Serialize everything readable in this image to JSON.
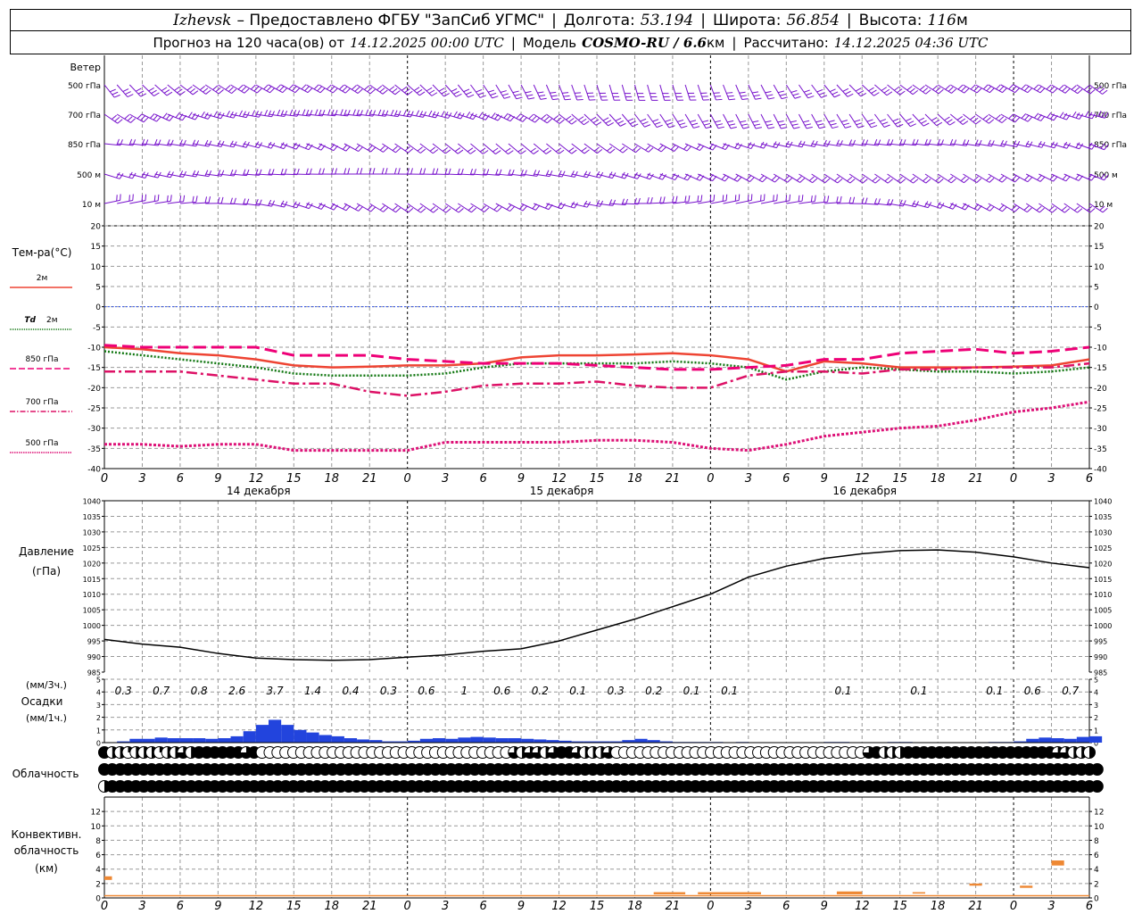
{
  "header": {
    "station": "Izhevsk",
    "provider": "– Предоставлено ФГБУ \"ЗапСиб УГМС\"",
    "lon_label": "Долгота:",
    "lon_value": "53.194",
    "lat_label": "Широта:",
    "lat_value": "56.854",
    "alt_label": "Высота:",
    "alt_value": "116",
    "alt_unit": "м",
    "forecast_label": "Прогноз на 120 часа(ов) от",
    "forecast_start": "14.12.2025 00:00 UTC",
    "model_label": "Модель",
    "model_name": "COSMO-RU / 6.6",
    "model_unit": "км",
    "calc_label": "Рассчитано:",
    "calc_time": "14.12.2025 04:36 UTC"
  },
  "colors": {
    "t2m": "#ee4433",
    "td2m": "#117711",
    "t850": "#ee0077",
    "t700": "#dd1166",
    "t500": "#dd1177",
    "wind": "#7711cc",
    "precip": "#2244dd",
    "conv": "#ee8833",
    "zero_line": "#3355ee",
    "grid": "#999999"
  },
  "time_axis": {
    "hour_ticks": [
      "0",
      "3",
      "6",
      "9",
      "12",
      "15",
      "18",
      "21",
      "0",
      "3",
      "6",
      "9",
      "12",
      "15",
      "18",
      "21",
      "0",
      "3",
      "6",
      "9",
      "12",
      "15",
      "18",
      "21",
      "0",
      "3",
      "6"
    ],
    "day_labels": [
      "14 декабря",
      "15 декабря",
      "16 декабря"
    ]
  },
  "wind_panel": {
    "title": "Ветер",
    "levels": [
      "500 гПа",
      "700 гПа",
      "850 гПа",
      "500 м",
      "10  м"
    ]
  },
  "chart_data": [
    {
      "type": "line",
      "title": "Тем-ра(°С)",
      "x_unit": "hours from 14.12.2025 00:00 UTC",
      "ylim": [
        -40,
        20
      ],
      "yticks": [
        20,
        15,
        10,
        5,
        0,
        -5,
        -10,
        -15,
        -20,
        -25,
        -30,
        -35,
        -40
      ],
      "series": [
        {
          "name": "2м",
          "x": [
            0,
            3,
            6,
            9,
            12,
            15,
            18,
            21,
            24,
            27,
            30,
            33,
            36,
            39,
            42,
            45,
            48,
            51,
            54,
            57,
            60,
            63,
            66,
            69,
            72,
            75,
            78
          ],
          "values": [
            -10,
            -10.5,
            -11.5,
            -12,
            -13,
            -14.5,
            -15,
            -14.8,
            -14.5,
            -14.5,
            -14,
            -12.5,
            -12,
            -12,
            -11.8,
            -11.5,
            -12,
            -13,
            -16,
            -13.5,
            -14,
            -15,
            -15,
            -15,
            -14.8,
            -14.5,
            -13
          ]
        },
        {
          "name": "Td 2м",
          "x": [
            0,
            3,
            6,
            9,
            12,
            15,
            18,
            21,
            24,
            27,
            30,
            33,
            36,
            39,
            42,
            45,
            48,
            51,
            54,
            57,
            60,
            63,
            66,
            69,
            72,
            75,
            78
          ],
          "values": [
            -11,
            -12,
            -13,
            -14,
            -15,
            -16.5,
            -17,
            -17,
            -17,
            -16.5,
            -15,
            -14,
            -14,
            -14,
            -14,
            -13.5,
            -14,
            -15,
            -18,
            -16,
            -15,
            -15.5,
            -16,
            -16,
            -16.5,
            -16,
            -15
          ]
        },
        {
          "name": "850 гПа",
          "x": [
            0,
            3,
            6,
            9,
            12,
            15,
            18,
            21,
            24,
            27,
            30,
            33,
            36,
            39,
            42,
            45,
            48,
            51,
            54,
            57,
            60,
            63,
            66,
            69,
            72,
            75,
            78
          ],
          "values": [
            -9.5,
            -10,
            -10,
            -10,
            -10,
            -12,
            -12,
            -12,
            -13,
            -13.5,
            -14,
            -14,
            -14,
            -14.5,
            -15,
            -15.5,
            -15.5,
            -15,
            -14.5,
            -13,
            -13,
            -11.5,
            -11,
            -10.5,
            -11.5,
            -11,
            -10
          ]
        },
        {
          "name": "700 гПа",
          "x": [
            0,
            3,
            6,
            9,
            12,
            15,
            18,
            21,
            24,
            27,
            30,
            33,
            36,
            39,
            42,
            45,
            48,
            51,
            54,
            57,
            60,
            63,
            66,
            69,
            72,
            75,
            78
          ],
          "values": [
            -16,
            -16,
            -16,
            -17,
            -18,
            -19,
            -19,
            -21,
            -22,
            -21,
            -19.5,
            -19,
            -19,
            -18.5,
            -19.5,
            -20,
            -20,
            -17,
            -16,
            -16,
            -16.5,
            -15.5,
            -15.5,
            -15,
            -15,
            -15,
            -14
          ]
        },
        {
          "name": "500 гПа",
          "x": [
            0,
            3,
            6,
            9,
            12,
            15,
            18,
            21,
            24,
            27,
            30,
            33,
            36,
            39,
            42,
            45,
            48,
            51,
            54,
            57,
            60,
            63,
            66,
            69,
            72,
            75,
            78
          ],
          "values": [
            -34,
            -34,
            -34.5,
            -34,
            -34,
            -35.5,
            -35.5,
            -35.5,
            -35.5,
            -33.5,
            -33.5,
            -33.5,
            -33.5,
            -33,
            -33,
            -33.5,
            -35,
            -35.5,
            -34,
            -32,
            -31,
            -30,
            -29.5,
            -28,
            -26,
            -25,
            -23.5
          ]
        }
      ]
    },
    {
      "type": "line",
      "title": "Давление",
      "ylabel": "(гПа)",
      "ylim": [
        985,
        1040
      ],
      "yticks": [
        1040,
        1035,
        1030,
        1025,
        1020,
        1015,
        1010,
        1005,
        1000,
        995,
        990,
        985
      ],
      "series": [
        {
          "name": "Давление",
          "x": [
            0,
            3,
            6,
            9,
            12,
            15,
            18,
            21,
            24,
            27,
            30,
            33,
            36,
            39,
            42,
            45,
            48,
            51,
            54,
            57,
            60,
            63,
            66,
            69,
            72,
            75,
            78
          ],
          "values": [
            995.5,
            994,
            993,
            991,
            989.5,
            989,
            988.8,
            989,
            989.8,
            990.5,
            991.7,
            992.5,
            995,
            998.5,
            1002,
            1006,
            1010,
            1015.5,
            1019,
            1021.5,
            1023,
            1024,
            1024.2,
            1023.5,
            1022,
            1020,
            1018.5
          ]
        }
      ]
    },
    {
      "type": "bar",
      "title": "Осадки",
      "ylabel": "(мм/1ч.)",
      "ylabel2": "(мм/3ч.)",
      "ylim": [
        0,
        5
      ],
      "yticks": [
        5,
        4,
        3,
        2,
        1,
        0
      ],
      "three_hour_totals": [
        {
          "x": 1.5,
          "label": "0.3"
        },
        {
          "x": 4.5,
          "label": "0.7"
        },
        {
          "x": 7.5,
          "label": "0.8"
        },
        {
          "x": 10.5,
          "label": "2.6"
        },
        {
          "x": 13.5,
          "label": "3.7"
        },
        {
          "x": 16.5,
          "label": "1.4"
        },
        {
          "x": 19.5,
          "label": "0.4"
        },
        {
          "x": 22.5,
          "label": "0.3"
        },
        {
          "x": 25.5,
          "label": "0.6"
        },
        {
          "x": 28.5,
          "label": "1"
        },
        {
          "x": 31.5,
          "label": "0.6"
        },
        {
          "x": 34.5,
          "label": "0.2"
        },
        {
          "x": 37.5,
          "label": "0.1"
        },
        {
          "x": 40.5,
          "label": "0.3"
        },
        {
          "x": 43.5,
          "label": "0.2"
        },
        {
          "x": 46.5,
          "label": "0.1"
        },
        {
          "x": 49.5,
          "label": "0.1"
        },
        {
          "x": 58.5,
          "label": "0.1"
        },
        {
          "x": 64.5,
          "label": "0.1"
        },
        {
          "x": 70.5,
          "label": "0.1"
        },
        {
          "x": 73.5,
          "label": "0.6"
        },
        {
          "x": 76.5,
          "label": "0.7"
        }
      ],
      "hourly_values": [
        0,
        0.1,
        0.3,
        0.3,
        0.4,
        0.35,
        0.35,
        0.35,
        0.3,
        0.35,
        0.5,
        0.9,
        1.4,
        1.8,
        1.4,
        1.0,
        0.8,
        0.6,
        0.5,
        0.35,
        0.25,
        0.2,
        0.1,
        0.1,
        0.15,
        0.3,
        0.35,
        0.3,
        0.4,
        0.45,
        0.4,
        0.35,
        0.35,
        0.3,
        0.25,
        0.2,
        0.15,
        0.1,
        0.1,
        0.1,
        0.1,
        0.2,
        0.3,
        0.2,
        0.1,
        0.05,
        0.05,
        0.05,
        0.05,
        0,
        0.05,
        0,
        0,
        0,
        0,
        0,
        0,
        0.05,
        0.05,
        0,
        0,
        0,
        0.05,
        0.05,
        0,
        0,
        0,
        0,
        0,
        0,
        0.05,
        0.05,
        0.1,
        0.3,
        0.4,
        0.35,
        0.3,
        0.45,
        0.5
      ]
    },
    {
      "type": "table",
      "title": "Облачность",
      "encoding": "cover fraction 0..1 per level (rows: high, middle, low), symbol = partially filled circle",
      "rows": [
        [
          1,
          0.5,
          0.5,
          0.25,
          0.5,
          0.5,
          0.5,
          0.25,
          0.5,
          0.5,
          0.75,
          0.5,
          1,
          1,
          1,
          1,
          1,
          1,
          0.75,
          1,
          0,
          0,
          0,
          0,
          0,
          0,
          0,
          0,
          0,
          0,
          0,
          0,
          0,
          0,
          0,
          0,
          0,
          0,
          0,
          0,
          0,
          0,
          0,
          0,
          0,
          0,
          0,
          0,
          0,
          0,
          0,
          0,
          0.75,
          0.5,
          0.75,
          0.75,
          0.5,
          0.75,
          1,
          1,
          0.75,
          0.5,
          0.5,
          0.5,
          0.75,
          0,
          0,
          0,
          0,
          0,
          0,
          0,
          0,
          0,
          0,
          0,
          0,
          0,
          0,
          0,
          0,
          0,
          0,
          0,
          0,
          0,
          0,
          0,
          0,
          0,
          0,
          0,
          0,
          0,
          0,
          0,
          0,
          0.75,
          1,
          0.5,
          0.5,
          0.5,
          1,
          1,
          1,
          1,
          1,
          1,
          1,
          1,
          1,
          1,
          1,
          1,
          1,
          1,
          1,
          1,
          1,
          1,
          1,
          0.75,
          0.75,
          0.5,
          0.5,
          0.5
        ],
        [
          1,
          1,
          1,
          1,
          1,
          1,
          1,
          1,
          1,
          1,
          1,
          1,
          1,
          1,
          1,
          1,
          1,
          1,
          1,
          1,
          1,
          1,
          1,
          1,
          1,
          1,
          1,
          1,
          1,
          1,
          1,
          1,
          1,
          1,
          1,
          1,
          1,
          1,
          1,
          1,
          1,
          1,
          1,
          1,
          1,
          1,
          1,
          1,
          1,
          1,
          1,
          1,
          1,
          1,
          1,
          1,
          1,
          1,
          1,
          1,
          1,
          1,
          1,
          1,
          1,
          1,
          1,
          1,
          1,
          1,
          1,
          1,
          1,
          1,
          1,
          1,
          1,
          1,
          1,
          1,
          1,
          1,
          1,
          1,
          1,
          1,
          1,
          1,
          1,
          1,
          1,
          1,
          1,
          1,
          1,
          1,
          1,
          1,
          1,
          1,
          1,
          1,
          1,
          1,
          1,
          1,
          1,
          1,
          1,
          1,
          1,
          1,
          1,
          1,
          1,
          1,
          1,
          1,
          1,
          1,
          1,
          1,
          1,
          1,
          1,
          1,
          1
        ],
        [
          0.5,
          1,
          1,
          1,
          1,
          1,
          1,
          1,
          1,
          1,
          1,
          1,
          1,
          1,
          1,
          1,
          1,
          1,
          1,
          1,
          1,
          1,
          1,
          1,
          1,
          1,
          1,
          1,
          1,
          1,
          1,
          1,
          1,
          1,
          1,
          1,
          1,
          1,
          1,
          1,
          1,
          1,
          1,
          1,
          1,
          1,
          1,
          1,
          1,
          1,
          1,
          1,
          1,
          1,
          1,
          1,
          1,
          1,
          1,
          1,
          1,
          1,
          1,
          1,
          1,
          1,
          1,
          1,
          1,
          1,
          1,
          1,
          1,
          1,
          1,
          1,
          1,
          1,
          1,
          1,
          1,
          1,
          1,
          1,
          1,
          1,
          1,
          1,
          1,
          1,
          1,
          1,
          1,
          1,
          1,
          1,
          1,
          1,
          1,
          1,
          1,
          1,
          1,
          1,
          1,
          1,
          1,
          1,
          1,
          1,
          1,
          1,
          1,
          1,
          1,
          1,
          1,
          1,
          1,
          1,
          1,
          1,
          1,
          1,
          1,
          1,
          1
        ]
      ]
    },
    {
      "type": "bar",
      "title": "Конвективн. облачность",
      "ylabel": "(км)",
      "ylim": [
        0,
        14
      ],
      "yticks": [
        12,
        10,
        8,
        6,
        4,
        2,
        0
      ],
      "segments": [
        {
          "x0": 0,
          "x1": 0.6,
          "base": 2.5,
          "top": 3.0
        },
        {
          "x0": 0,
          "x1": 78,
          "base": 0.3,
          "top": 0.4
        },
        {
          "x0": 43.5,
          "x1": 46,
          "base": 0.5,
          "top": 0.8
        },
        {
          "x0": 47,
          "x1": 52,
          "base": 0.5,
          "top": 0.8
        },
        {
          "x0": 58,
          "x1": 60,
          "base": 0.5,
          "top": 0.9
        },
        {
          "x0": 64,
          "x1": 65,
          "base": 0.6,
          "top": 0.8
        },
        {
          "x0": 68.5,
          "x1": 69.5,
          "base": 1.7,
          "top": 2.0
        },
        {
          "x0": 72.5,
          "x1": 73.5,
          "base": 1.4,
          "top": 1.7
        },
        {
          "x0": 75,
          "x1": 76,
          "base": 4.5,
          "top": 5.2
        }
      ]
    }
  ]
}
